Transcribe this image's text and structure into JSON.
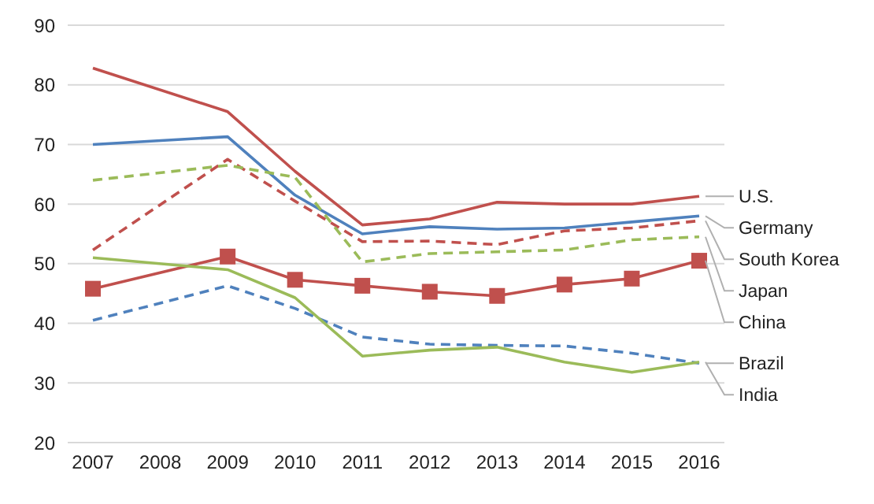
{
  "chart_data": {
    "type": "line",
    "categories": [
      "2007",
      "2008",
      "2009",
      "2010",
      "2011",
      "2012",
      "2013",
      "2014",
      "2015",
      "2016"
    ],
    "series": [
      {
        "name": "U.S.",
        "color": "#c0504d",
        "line_style": "solid",
        "marker": "none",
        "values": [
          82.8,
          null,
          75.5,
          65.5,
          56.5,
          57.5,
          60.3,
          60,
          60,
          61.3
        ]
      },
      {
        "name": "Germany",
        "color": "#4f81bd",
        "line_style": "solid",
        "marker": "none",
        "values": [
          70,
          null,
          71.3,
          61.5,
          55,
          56.2,
          55.8,
          56,
          57,
          58
        ]
      },
      {
        "name": "South Korea",
        "color": "#c0504d",
        "line_style": "dashed",
        "marker": "none",
        "values": [
          52.3,
          null,
          67.5,
          60.5,
          53.7,
          53.8,
          53.2,
          55.5,
          56,
          57.2
        ]
      },
      {
        "name": "Japan",
        "color": "#9bbb59",
        "line_style": "dashed",
        "marker": "none",
        "values": [
          64,
          null,
          66.5,
          64.5,
          50.3,
          51.7,
          52,
          52.3,
          54,
          54.5
        ]
      },
      {
        "name": "China",
        "color": "#c0504d",
        "line_style": "solid",
        "marker": "square",
        "values": [
          45.8,
          null,
          51.2,
          47.3,
          46.3,
          45.3,
          44.6,
          46.5,
          47.5,
          50.5
        ]
      },
      {
        "name": "Brazil",
        "color": "#4f81bd",
        "line_style": "dashed",
        "marker": "none",
        "values": [
          40.5,
          null,
          46.3,
          42.5,
          37.7,
          36.5,
          36.3,
          36.2,
          35,
          33.3
        ]
      },
      {
        "name": "India",
        "color": "#9bbb59",
        "line_style": "solid",
        "marker": "none",
        "values": [
          51,
          null,
          49,
          44.3,
          34.5,
          35.5,
          36,
          33.5,
          31.8,
          33.5
        ]
      }
    ],
    "ylim": [
      20,
      90
    ],
    "yticks": [
      20,
      30,
      40,
      50,
      60,
      70,
      80,
      90
    ],
    "grid": "y",
    "legend": false
  }
}
